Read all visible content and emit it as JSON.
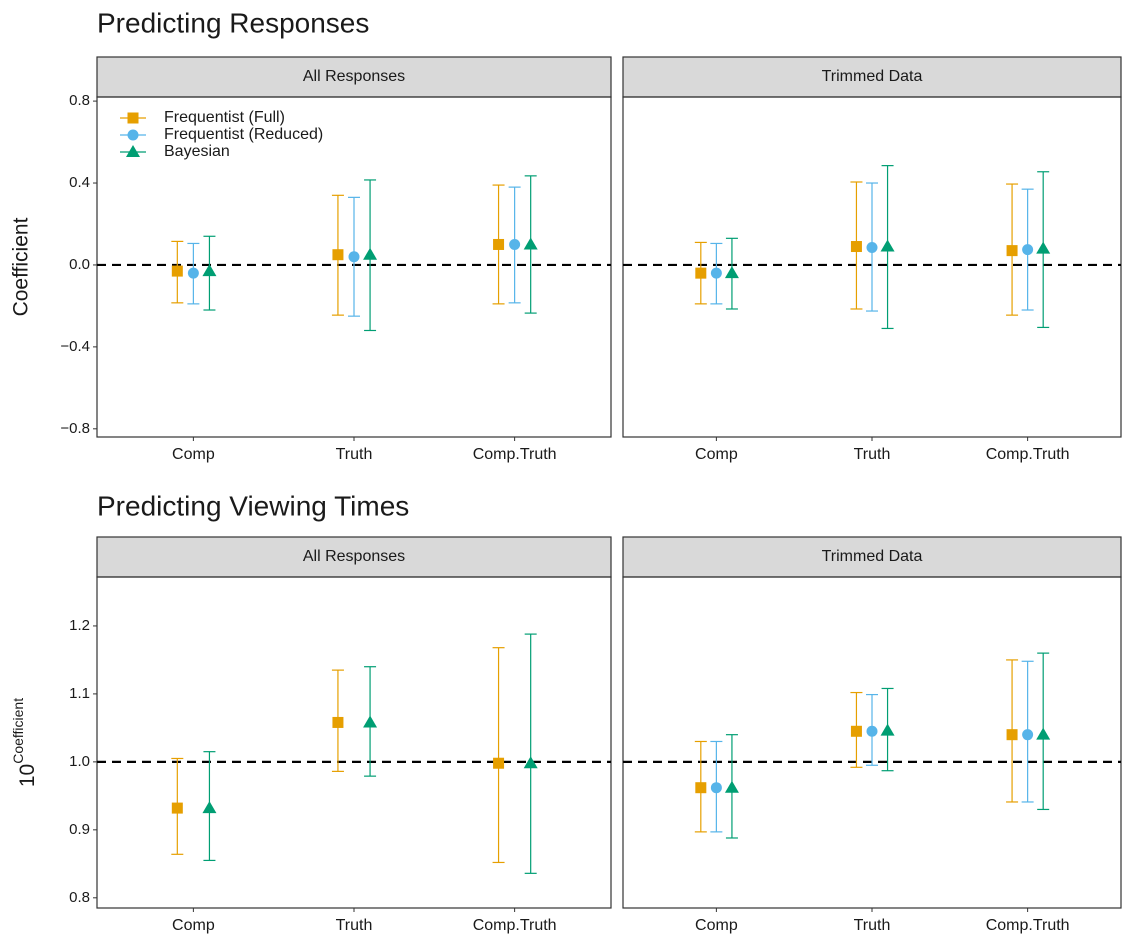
{
  "chart_data": [
    {
      "type": "errorbar",
      "title": "Predicting Responses",
      "y_label": "Coefficient",
      "ylim": [
        -0.84,
        0.82
      ],
      "yticks": [
        {
          "value": -0.8,
          "label": "−0.8"
        },
        {
          "value": -0.4,
          "label": "−0.4"
        },
        {
          "value": 0,
          "label": "0.0"
        },
        0.4,
        0.8
      ],
      "reference_line": 0,
      "legend": "top-left",
      "categories": [
        "Comp",
        "Truth",
        "Comp.Truth"
      ],
      "facets": [
        "All Responses",
        "Trimmed Data"
      ],
      "series": [
        {
          "name": "Frequentist (Full)",
          "color": "#e69f00",
          "shape": "square",
          "values": [
            [
              -0.03,
              0.05,
              0.1
            ],
            [
              -0.04,
              0.09,
              0.07
            ]
          ],
          "lower": [
            [
              -0.185,
              -0.245,
              -0.19
            ],
            [
              -0.19,
              -0.215,
              -0.245
            ]
          ],
          "upper": [
            [
              0.115,
              0.34,
              0.39
            ],
            [
              0.11,
              0.405,
              0.395
            ]
          ]
        },
        {
          "name": "Frequentist (Reduced)",
          "color": "#56b4e9",
          "shape": "circle",
          "values": [
            [
              -0.04,
              0.04,
              0.1
            ],
            [
              -0.04,
              0.085,
              0.075
            ]
          ],
          "lower": [
            [
              -0.19,
              -0.25,
              -0.185
            ],
            [
              -0.19,
              -0.225,
              -0.22
            ]
          ],
          "upper": [
            [
              0.105,
              0.33,
              0.38
            ],
            [
              0.105,
              0.4,
              0.37
            ]
          ]
        },
        {
          "name": "Bayesian",
          "color": "#009e73",
          "shape": "triangle",
          "values": [
            [
              -0.03,
              0.05,
              0.1
            ],
            [
              -0.04,
              0.09,
              0.08
            ]
          ],
          "lower": [
            [
              -0.22,
              -0.32,
              -0.235
            ],
            [
              -0.215,
              -0.31,
              -0.305
            ]
          ],
          "upper": [
            [
              0.14,
              0.415,
              0.435
            ],
            [
              0.13,
              0.485,
              0.455
            ]
          ]
        }
      ]
    },
    {
      "type": "errorbar",
      "title": "Predicting Viewing Times",
      "y_label": {
        "base": "10",
        "exponent": "Coefficient"
      },
      "ylim": [
        0.785,
        1.272
      ],
      "yticks": [
        0.8,
        0.9,
        {
          "value": 1.0,
          "label": "1.0"
        },
        1.1,
        1.2
      ],
      "reference_line": 1.0,
      "categories": [
        "Comp",
        "Truth",
        "Comp.Truth"
      ],
      "facets": [
        "All Responses",
        "Trimmed Data"
      ],
      "series": [
        {
          "color": "#e69f00",
          "shape": "square",
          "values": [
            [
              0.932,
              1.058,
              0.998
            ],
            [
              0.962,
              1.045,
              1.04
            ]
          ],
          "lower": [
            [
              0.864,
              0.986,
              0.852
            ],
            [
              0.897,
              0.992,
              0.941
            ]
          ],
          "upper": [
            [
              1.005,
              1.135,
              1.168
            ],
            [
              1.03,
              1.102,
              1.15
            ]
          ]
        },
        {
          "color": "#56b4e9",
          "shape": "circle",
          "values": [
            [
              null,
              null,
              null
            ],
            [
              0.962,
              1.045,
              1.04
            ]
          ],
          "lower": [
            [
              null,
              null,
              null
            ],
            [
              0.897,
              0.995,
              0.941
            ]
          ],
          "upper": [
            [
              null,
              null,
              null
            ],
            [
              1.03,
              1.099,
              1.148
            ]
          ]
        },
        {
          "color": "#009e73",
          "shape": "triangle",
          "values": [
            [
              0.932,
              1.058,
              0.998
            ],
            [
              0.962,
              1.046,
              1.04
            ]
          ],
          "lower": [
            [
              0.855,
              0.979,
              0.836
            ],
            [
              0.888,
              0.987,
              0.93
            ]
          ],
          "upper": [
            [
              1.015,
              1.14,
              1.188
            ],
            [
              1.04,
              1.108,
              1.16
            ]
          ]
        }
      ]
    }
  ]
}
